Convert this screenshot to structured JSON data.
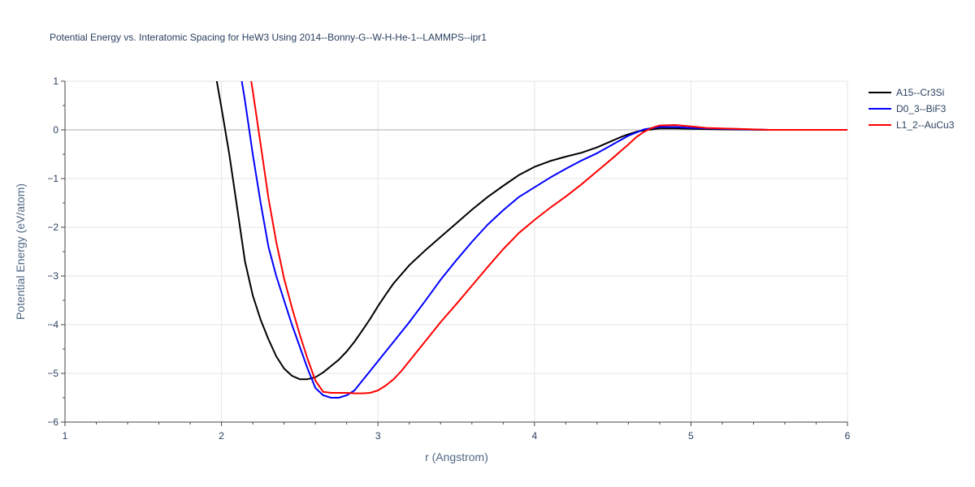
{
  "chart_data": {
    "type": "line",
    "title": "Potential Energy vs. Interatomic Spacing for HeW3 Using 2014--Bonny-G--W-H-He-1--LAMMPS--ipr1",
    "xlabel": "r (Angstrom)",
    "ylabel": "Potential Energy (eV/atom)",
    "xlim": [
      1,
      6
    ],
    "ylim": [
      -6,
      1
    ],
    "xticks": [
      1,
      2,
      3,
      4,
      5,
      6
    ],
    "xtick_labels": [
      "1",
      "2",
      "3",
      "4",
      "5",
      "6"
    ],
    "yticks": [
      1,
      0,
      -1,
      -2,
      -3,
      -4,
      -5,
      -6
    ],
    "ytick_labels": [
      "1",
      "0",
      "−1",
      "−2",
      "−3",
      "−4",
      "−5",
      "−6"
    ],
    "grid": true,
    "legend_position": "top-right",
    "series": [
      {
        "name": "A15--Cr3Si",
        "color": "#000000",
        "x": [
          1.97,
          2.0,
          2.05,
          2.1,
          2.15,
          2.2,
          2.25,
          2.3,
          2.35,
          2.4,
          2.45,
          2.5,
          2.55,
          2.6,
          2.65,
          2.7,
          2.75,
          2.8,
          2.85,
          2.9,
          2.95,
          3.0,
          3.05,
          3.1,
          3.2,
          3.3,
          3.4,
          3.5,
          3.6,
          3.7,
          3.8,
          3.9,
          4.0,
          4.1,
          4.2,
          4.3,
          4.4,
          4.5,
          4.55,
          4.6,
          4.65,
          4.7,
          4.75,
          4.8,
          4.9,
          5.0,
          5.2,
          5.5,
          6.0
        ],
        "y": [
          1.0,
          0.45,
          -0.5,
          -1.6,
          -2.7,
          -3.4,
          -3.9,
          -4.3,
          -4.65,
          -4.9,
          -5.05,
          -5.12,
          -5.12,
          -5.08,
          -4.98,
          -4.85,
          -4.72,
          -4.55,
          -4.35,
          -4.12,
          -3.88,
          -3.62,
          -3.38,
          -3.15,
          -2.78,
          -2.48,
          -2.2,
          -1.92,
          -1.64,
          -1.38,
          -1.15,
          -0.93,
          -0.76,
          -0.64,
          -0.55,
          -0.47,
          -0.36,
          -0.22,
          -0.15,
          -0.09,
          -0.04,
          -0.01,
          0.01,
          0.03,
          0.03,
          0.02,
          0.01,
          0.0,
          0.0
        ]
      },
      {
        "name": "D0_3--BiF3",
        "color": "#0000ff",
        "x": [
          2.13,
          2.15,
          2.2,
          2.25,
          2.3,
          2.35,
          2.4,
          2.45,
          2.5,
          2.55,
          2.6,
          2.65,
          2.7,
          2.75,
          2.8,
          2.85,
          2.9,
          2.95,
          3.0,
          3.1,
          3.2,
          3.3,
          3.4,
          3.5,
          3.6,
          3.7,
          3.8,
          3.9,
          4.0,
          4.1,
          4.2,
          4.3,
          4.4,
          4.5,
          4.6,
          4.7,
          4.8,
          4.9,
          5.0,
          5.2,
          5.5,
          6.0
        ],
        "y": [
          1.0,
          0.6,
          -0.5,
          -1.5,
          -2.4,
          -3.0,
          -3.5,
          -4.0,
          -4.45,
          -4.9,
          -5.3,
          -5.45,
          -5.5,
          -5.5,
          -5.45,
          -5.35,
          -5.15,
          -4.95,
          -4.75,
          -4.35,
          -3.95,
          -3.52,
          -3.08,
          -2.68,
          -2.3,
          -1.95,
          -1.65,
          -1.38,
          -1.18,
          -0.98,
          -0.8,
          -0.63,
          -0.48,
          -0.3,
          -0.12,
          0.01,
          0.06,
          0.06,
          0.04,
          0.02,
          0.0,
          0.0
        ]
      },
      {
        "name": "L1_2--AuCu3",
        "color": "#ff0000",
        "x": [
          2.19,
          2.2,
          2.25,
          2.3,
          2.35,
          2.4,
          2.45,
          2.5,
          2.55,
          2.6,
          2.65,
          2.7,
          2.75,
          2.8,
          2.85,
          2.9,
          2.95,
          3.0,
          3.05,
          3.1,
          3.15,
          3.2,
          3.3,
          3.4,
          3.5,
          3.6,
          3.7,
          3.8,
          3.9,
          4.0,
          4.1,
          4.2,
          4.3,
          4.4,
          4.5,
          4.55,
          4.6,
          4.65,
          4.7,
          4.75,
          4.8,
          4.9,
          5.0,
          5.1,
          5.3,
          5.5,
          6.0
        ],
        "y": [
          1.0,
          0.8,
          -0.3,
          -1.4,
          -2.3,
          -3.05,
          -3.65,
          -4.2,
          -4.7,
          -5.15,
          -5.38,
          -5.4,
          -5.4,
          -5.4,
          -5.41,
          -5.41,
          -5.4,
          -5.35,
          -5.25,
          -5.12,
          -4.95,
          -4.75,
          -4.35,
          -3.95,
          -3.58,
          -3.2,
          -2.82,
          -2.45,
          -2.12,
          -1.85,
          -1.6,
          -1.37,
          -1.12,
          -0.85,
          -0.58,
          -0.44,
          -0.3,
          -0.15,
          -0.04,
          0.04,
          0.09,
          0.1,
          0.07,
          0.04,
          0.02,
          0.0,
          0.0
        ]
      }
    ]
  }
}
